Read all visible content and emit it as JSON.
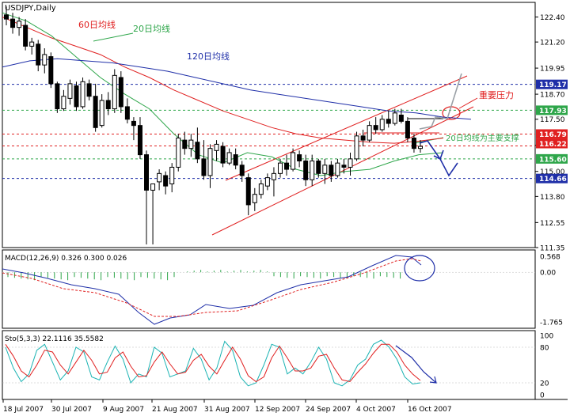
{
  "chart_data": [
    {
      "type": "candlestick",
      "title": "USDJPY,Daily",
      "yaxis_ticks": [
        "122.40",
        "121.20",
        "119.95",
        "118.70",
        "117.50",
        "116.25",
        "115.00",
        "113.80",
        "112.55",
        "111.35"
      ],
      "ylim": [
        111.35,
        123.1
      ],
      "xaxis_ticks": [
        "18 Jul 2007",
        "30 Jul 2007",
        "9 Aug 2007",
        "21 Aug 2007",
        "31 Aug 2007",
        "12 Sep 2007",
        "24 Sep 2007",
        "4 Oct 2007",
        "16 Oct 2007"
      ],
      "price_labels": [
        {
          "value": "119.17",
          "color": "#1f2fa8"
        },
        {
          "value": "117.93",
          "color": "#2ea64a"
        },
        {
          "value": "116.79",
          "color": "#e02020"
        },
        {
          "value": "116.22",
          "color": "#e02020"
        },
        {
          "value": "115.60",
          "color": "#2ea64a"
        },
        {
          "value": "114.66",
          "color": "#1f2fa8"
        }
      ],
      "annotations": [
        "60日均线",
        "20日均线",
        "120日均线",
        "重要压力",
        "20日均线为主要支撑"
      ],
      "candles": [
        [
          122.5,
          122.9,
          122.0,
          122.3
        ],
        [
          122.3,
          122.6,
          121.6,
          121.9
        ],
        [
          121.9,
          122.4,
          121.5,
          122.2
        ],
        [
          122.0,
          122.3,
          120.8,
          121.0
        ],
        [
          121.0,
          121.4,
          120.6,
          121.2
        ],
        [
          121.1,
          121.3,
          119.8,
          120.1
        ],
        [
          120.1,
          120.9,
          119.7,
          120.6
        ],
        [
          120.5,
          120.7,
          119.0,
          119.2
        ],
        [
          119.2,
          119.3,
          117.8,
          118.0
        ],
        [
          118.0,
          118.9,
          117.9,
          118.6
        ],
        [
          118.5,
          119.4,
          118.2,
          119.2
        ],
        [
          119.1,
          119.3,
          117.9,
          118.1
        ],
        [
          118.1,
          119.5,
          118.0,
          119.3
        ],
        [
          119.2,
          119.4,
          118.4,
          118.6
        ],
        [
          118.6,
          119.2,
          116.9,
          117.1
        ],
        [
          117.2,
          118.7,
          117.1,
          118.4
        ],
        [
          118.4,
          118.8,
          117.7,
          118.0
        ],
        [
          118.0,
          119.9,
          117.8,
          119.6
        ],
        [
          119.5,
          119.8,
          117.8,
          118.1
        ],
        [
          118.1,
          118.5,
          117.3,
          117.5
        ],
        [
          117.4,
          117.6,
          116.5,
          117.2
        ],
        [
          117.2,
          117.6,
          115.6,
          115.8
        ],
        [
          115.8,
          116.0,
          111.5,
          114.1
        ],
        [
          114.1,
          114.3,
          111.5,
          114.4
        ],
        [
          114.5,
          115.1,
          114.1,
          114.9
        ],
        [
          114.8,
          115.0,
          113.9,
          114.3
        ],
        [
          114.4,
          115.4,
          114.0,
          115.2
        ],
        [
          115.2,
          116.8,
          115.0,
          116.6
        ],
        [
          116.5,
          116.9,
          115.8,
          116.1
        ],
        [
          116.1,
          116.8,
          115.7,
          116.5
        ],
        [
          116.4,
          117.1,
          115.4,
          115.6
        ],
        [
          115.6,
          116.5,
          114.6,
          114.8
        ],
        [
          114.8,
          116.3,
          114.2,
          116.1
        ],
        [
          116.0,
          116.5,
          115.5,
          116.3
        ],
        [
          116.2,
          116.4,
          115.2,
          115.4
        ],
        [
          115.4,
          116.1,
          115.3,
          115.9
        ],
        [
          115.8,
          116.1,
          115.1,
          115.3
        ],
        [
          115.3,
          115.5,
          114.5,
          114.8
        ],
        [
          114.7,
          114.9,
          112.9,
          113.4
        ],
        [
          113.5,
          114.2,
          113.1,
          113.9
        ],
        [
          113.9,
          114.6,
          113.7,
          114.4
        ],
        [
          114.3,
          114.9,
          114.1,
          114.7
        ],
        [
          114.6,
          115.2,
          113.8,
          114.9
        ],
        [
          114.9,
          115.6,
          114.7,
          115.4
        ],
        [
          115.4,
          115.8,
          114.8,
          115.1
        ],
        [
          115.1,
          116.1,
          115.0,
          115.9
        ],
        [
          115.8,
          116.0,
          115.2,
          115.5
        ],
        [
          115.5,
          115.8,
          114.3,
          114.6
        ],
        [
          114.6,
          115.8,
          114.3,
          115.5
        ],
        [
          115.5,
          115.6,
          114.7,
          114.9
        ],
        [
          114.9,
          115.6,
          114.4,
          115.3
        ],
        [
          115.3,
          115.5,
          114.5,
          114.8
        ],
        [
          114.8,
          115.6,
          114.7,
          115.4
        ],
        [
          115.3,
          115.6,
          114.9,
          115.2
        ],
        [
          115.2,
          115.9,
          114.8,
          115.6
        ],
        [
          115.6,
          116.9,
          115.5,
          116.7
        ],
        [
          116.7,
          117.0,
          116.2,
          116.5
        ],
        [
          116.5,
          117.4,
          116.4,
          117.2
        ],
        [
          117.2,
          117.6,
          116.8,
          117.0
        ],
        [
          117.0,
          117.7,
          116.9,
          117.5
        ],
        [
          117.5,
          117.9,
          117.1,
          117.3
        ],
        [
          117.3,
          118.0,
          117.2,
          117.8
        ],
        [
          117.7,
          118.0,
          117.3,
          117.4
        ],
        [
          117.4,
          117.6,
          116.4,
          116.6
        ],
        [
          116.6,
          116.8,
          115.9,
          116.1
        ],
        [
          116.1,
          116.5,
          115.9,
          116.2
        ]
      ],
      "forecast_blue": [
        [
          115.9,
          116.1
        ],
        [
          114.9,
          115.3
        ],
        [
          116.0,
          116.3
        ],
        [
          117.4,
          115.3
        ],
        [
          115.0,
          114.8
        ],
        [
          115.2,
          115.6
        ]
      ],
      "series": [
        {
          "name": "60日均线",
          "color": "#e02020",
          "values": [
            122.4,
            121.9,
            121.4,
            121.0,
            120.6,
            120.0,
            119.5,
            118.9,
            118.4,
            117.9,
            117.5,
            117.1,
            116.8,
            116.6,
            116.5,
            116.4,
            116.35,
            116.45,
            116.6
          ]
        },
        {
          "name": "20日均线",
          "color": "#2ea64a",
          "values": [
            122.6,
            122.2,
            121.5,
            120.5,
            119.5,
            118.7,
            118.0,
            116.8,
            115.8,
            115.4,
            115.9,
            115.7,
            115.1,
            114.8,
            115.0,
            115.1,
            115.5,
            115.8,
            115.9
          ]
        },
        {
          "name": "120日均线",
          "color": "#1f2fa8",
          "values": [
            120.0,
            120.3,
            120.4,
            120.3,
            120.2,
            120.0,
            119.8,
            119.5,
            119.2,
            118.9,
            118.7,
            118.5,
            118.3,
            118.1,
            117.9,
            117.8,
            117.6,
            117.5
          ]
        }
      ]
    },
    {
      "type": "line",
      "title": "MACD(12,26,9) 0.326 0.300 0.026",
      "yaxis_ticks": [
        "0.568",
        "0.00",
        "-1.765"
      ],
      "series": [
        {
          "name": "MACD",
          "color": "#1f2fa8"
        },
        {
          "name": "signal",
          "color": "#e02020"
        }
      ]
    },
    {
      "type": "line",
      "title": "Sto(5,3,3) 22.1116 35.5582",
      "yaxis_ticks": [
        "100",
        "80",
        "20",
        "0"
      ],
      "series": [
        {
          "name": "%K",
          "color": "#1ab3b3",
          "values": [
            80,
            45,
            22,
            35,
            75,
            85,
            55,
            25,
            40,
            80,
            72,
            30,
            25,
            55,
            82,
            60,
            20,
            35,
            30,
            80,
            70,
            30,
            35,
            40,
            78,
            60,
            25,
            45,
            90,
            75,
            30,
            15,
            20,
            50,
            85,
            80,
            35,
            45,
            35,
            55,
            80,
            60,
            20,
            15,
            25,
            50,
            60,
            85,
            92,
            80,
            60,
            30,
            18,
            20
          ]
        },
        {
          "name": "%D",
          "color": "#e02020",
          "values": [
            85,
            65,
            40,
            30,
            50,
            75,
            72,
            50,
            35,
            55,
            75,
            58,
            35,
            38,
            62,
            72,
            48,
            30,
            32,
            55,
            72,
            52,
            35,
            38,
            58,
            68,
            48,
            35,
            58,
            80,
            60,
            32,
            22,
            30,
            62,
            82,
            62,
            40,
            40,
            45,
            65,
            68,
            45,
            25,
            22,
            38,
            52,
            70,
            85,
            85,
            72,
            50,
            35,
            24
          ]
        }
      ],
      "forecast": [
        [
          60,
          85
        ],
        [
          40,
          60
        ],
        [
          25,
          35
        ],
        [
          20,
          18
        ]
      ]
    }
  ]
}
